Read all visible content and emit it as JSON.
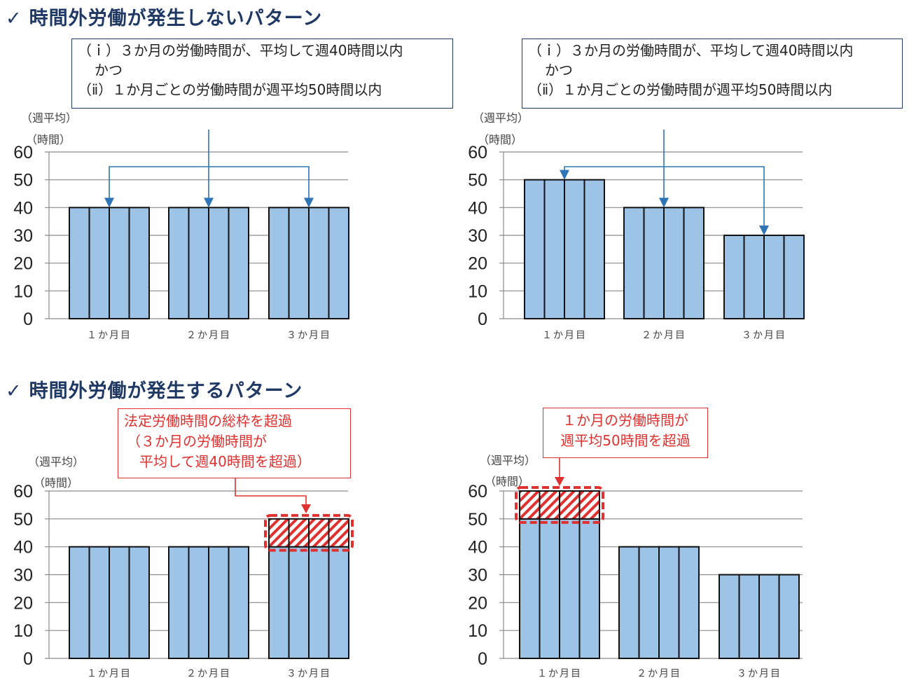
{
  "headings": {
    "no_overtime": "時間外労働が発生しないパターン",
    "overtime": "時間外労働が発生するパターン",
    "check_mark": "✓"
  },
  "condition_box": {
    "line1": "（ｉ）３か月の労働時間が、平均して週40時間以内",
    "line2": "かつ",
    "line3": "（ⅱ）１か月ごとの労働時間が週平均50時間以内"
  },
  "callouts": {
    "bottom_left": {
      "line1": "法定労働時間の総枠を超過",
      "line2": "（３か月の労働時間が",
      "line3": "平均して週40時間を超過）"
    },
    "bottom_right": {
      "line1": "１か月の労働時間が",
      "line2": "週平均50時間を超過"
    }
  },
  "colors": {
    "bar_fill": "#9dc3e6",
    "bar_stroke": "#111111",
    "arrow": "#2e75b6",
    "excess": "#e0302f",
    "heading": "#1f3864",
    "grid": "#8a8a8a"
  },
  "chart_data": [
    {
      "type": "bar",
      "unit_line1": "（週平均）",
      "unit_line2": "（時間）",
      "categories": [
        "１か月目",
        "２か月目",
        "３か月目"
      ],
      "yticks": [
        "0",
        "10",
        "20",
        "30",
        "40",
        "50",
        "60"
      ],
      "values": [
        40,
        40,
        40
      ],
      "weeks_per_month": 4,
      "excess_band": null,
      "arrows_from_condition_box": true,
      "ylim": [
        0,
        60
      ],
      "grid": true
    },
    {
      "type": "bar",
      "unit_line1": "（週平均）",
      "unit_line2": "（時間）",
      "categories": [
        "１か月目",
        "２か月目",
        "３か月目"
      ],
      "yticks": [
        "0",
        "10",
        "20",
        "30",
        "40",
        "50",
        "60"
      ],
      "values": [
        50,
        40,
        30
      ],
      "weeks_per_month": 4,
      "excess_band": null,
      "arrows_from_condition_box": true,
      "ylim": [
        0,
        60
      ],
      "grid": true
    },
    {
      "type": "bar",
      "unit_line1": "（週平均）",
      "unit_line2": "（時間）",
      "categories": [
        "１か月目",
        "２か月目",
        "３か月目"
      ],
      "yticks": [
        "0",
        "10",
        "20",
        "30",
        "40",
        "50",
        "60"
      ],
      "values": [
        40,
        40,
        50
      ],
      "weeks_per_month": 4,
      "excess_band": {
        "category_index": 2,
        "from": 40,
        "to": 50
      },
      "arrows_from_condition_box": false,
      "ylim": [
        0,
        60
      ],
      "grid": true
    },
    {
      "type": "bar",
      "unit_line1": "（週平均）",
      "unit_line2": "（時間）",
      "categories": [
        "１か月目",
        "２か月目",
        "３か月目"
      ],
      "yticks": [
        "0",
        "10",
        "20",
        "30",
        "40",
        "50",
        "60"
      ],
      "values": [
        60,
        40,
        30
      ],
      "weeks_per_month": 4,
      "excess_band": {
        "category_index": 0,
        "from": 50,
        "to": 60
      },
      "arrows_from_condition_box": false,
      "ylim": [
        0,
        60
      ],
      "grid": true
    }
  ]
}
